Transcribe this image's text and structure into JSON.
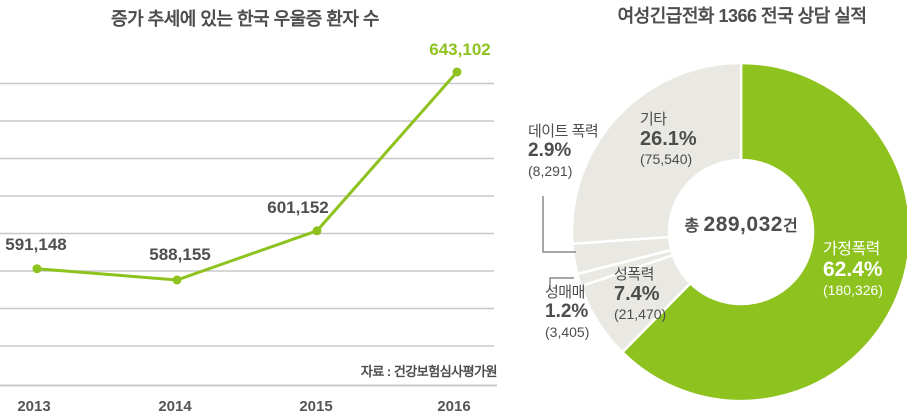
{
  "colors": {
    "accent_green": "#8dc21f",
    "slice_gray": "#e9e8e2",
    "grid_gray": "#c8c8c8",
    "text_dark": "#4d4d4d",
    "leader_gray": "#8a8a8a",
    "separator_white": "#ffffff"
  },
  "chart_data": [
    {
      "type": "line",
      "title": "증가 추세에 있는 한국 우울증 환자 수",
      "x": [
        "2013",
        "2014",
        "2015",
        "2016"
      ],
      "values": [
        591148,
        588155,
        601152,
        643102
      ],
      "value_labels": [
        "591,148",
        "588,155",
        "601,152",
        "643,102"
      ],
      "source_note": "자료 : 건강보험심사평가원",
      "line_color": "#8dc21f",
      "point_color": "#8dc21f",
      "last_label_color": "#8dc21f",
      "label_color": "#4f4f4f",
      "grid": true,
      "gridline_count": 8,
      "y_axis_labels": "none (values shown as data labels)"
    },
    {
      "type": "pie",
      "subtype": "donut",
      "title": "여성긴급전화 1366 전국 상담 실적",
      "center_label": {
        "prefix": "총",
        "value": "289,032",
        "suffix": "건"
      },
      "total": 289032,
      "start_angle_deg": 0,
      "direction": "clockwise",
      "separator_color": "#ffffff",
      "segments": [
        {
          "label": "가정폭력",
          "pct": 62.4,
          "pct_text": "62.4%",
          "count": 180326,
          "count_text": "(180,326)",
          "color": "#8dc21f",
          "text_color": "#ffffff",
          "label_placement": "inside-right"
        },
        {
          "label": "성폭력",
          "pct": 7.4,
          "pct_text": "7.4%",
          "count": 21470,
          "count_text": "(21,470)",
          "color": "#e9e8e2",
          "text_color": "#4d4d4d",
          "label_placement": "inside-lower-left"
        },
        {
          "label": "성매매",
          "pct": 1.2,
          "pct_text": "1.2%",
          "count": 3405,
          "count_text": "(3,405)",
          "color": "#e9e8e2",
          "text_color": "#4d4d4d",
          "label_placement": "outside-left-lower-with-leader"
        },
        {
          "label": "데이트 폭력",
          "pct": 2.9,
          "pct_text": "2.9%",
          "count": 8291,
          "count_text": "(8,291)",
          "color": "#e9e8e2",
          "text_color": "#4d4d4d",
          "label_placement": "outside-left-upper-with-leader"
        },
        {
          "label": "기타",
          "pct": 26.1,
          "pct_text": "26.1%",
          "count": 75540,
          "count_text": "(75,540)",
          "color": "#e9e8e2",
          "text_color": "#4d4d4d",
          "label_placement": "inside-top-left"
        }
      ]
    }
  ]
}
